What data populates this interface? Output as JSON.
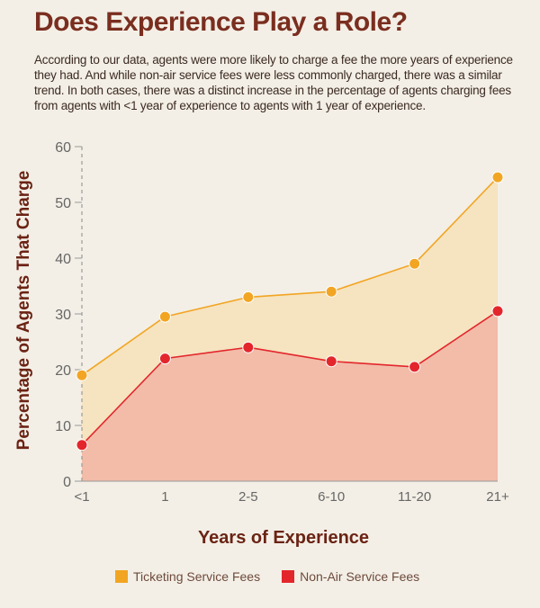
{
  "title": "Does Experience Play a Role?",
  "intro": "According to our data, agents were more likely to charge a fee the more years of experience they had.   And while non-air service fees were less commonly charged, there was a similar trend.   In both cases, there was a distinct increase in the percentage of agents charging fees from agents with <1 year of experience to agents with 1 year of experience.",
  "chart_data": {
    "type": "area",
    "title": "",
    "xlabel": "Years of Experience",
    "ylabel": "Percentage of Agents That Charge",
    "categories": [
      "<1",
      "1",
      "2-5",
      "6-10",
      "11-20",
      "21+"
    ],
    "ylim": [
      0,
      60
    ],
    "yticks": [
      0,
      10,
      20,
      30,
      40,
      50,
      60
    ],
    "grid": false,
    "legend_position": "bottom",
    "series": [
      {
        "name": "Ticketing Service Fees",
        "values": [
          19,
          29.5,
          33,
          34,
          39,
          54.5
        ],
        "color": "#f2a523",
        "fill": "#f6e3c0"
      },
      {
        "name": "Non-Air Service Fees",
        "values": [
          6.5,
          22,
          24,
          21.5,
          20.5,
          30.5
        ],
        "color": "#e3262c",
        "fill": "#f2bca8"
      }
    ]
  }
}
